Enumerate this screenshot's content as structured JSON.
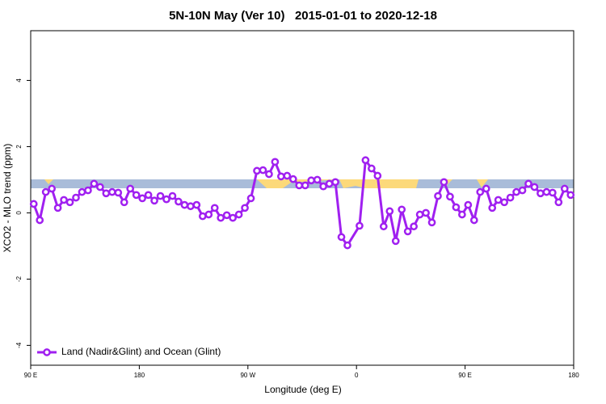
{
  "chart_data": {
    "type": "line",
    "title": "5N-10N May (Ver 10)   2015-01-01 to 2020-12-18",
    "x_label": "Longitude (deg E)",
    "y_label": "XCO2 - MLO trend (ppm)",
    "x": [
      92.5,
      97.5,
      102.5,
      107.5,
      112.5,
      117.5,
      122.5,
      127.5,
      132.5,
      137.5,
      142.5,
      147.5,
      152.5,
      157.5,
      162.5,
      167.5,
      172.5,
      177.5,
      182.5,
      187.5,
      192.5,
      197.5,
      202.5,
      207.5,
      212.5,
      217.5,
      222.5,
      227.5,
      232.5,
      237.5,
      242.5,
      247.5,
      252.5,
      257.5,
      262.5,
      267.5,
      272.5,
      277.5,
      282.5,
      287.5,
      292.5,
      297.5,
      302.5,
      307.5,
      312.5,
      317.5,
      322.5,
      327.5,
      332.5,
      337.5,
      342.5,
      347.5,
      352.5,
      362.5,
      367.5,
      372.5,
      377.5,
      382.5,
      387.5,
      392.5,
      397.5,
      402.5,
      407.5,
      412.5,
      417.5,
      422.5,
      427.5,
      432.5,
      437.5,
      442.5,
      447.5,
      452.5,
      457.5,
      462.5,
      467.5,
      472.5,
      477.5,
      482.5,
      487.5,
      492.5,
      497.5,
      502.5,
      507.5,
      512.5,
      517.5,
      522.5,
      527.5,
      532.5,
      537.5
    ],
    "series": [
      {
        "name": "Land (Nadir&Glint) and Ocean (Glint)",
        "color": "#a020f0",
        "values": [
          0.27,
          -0.22,
          0.63,
          0.73,
          0.15,
          0.39,
          0.32,
          0.46,
          0.63,
          0.68,
          0.88,
          0.78,
          0.59,
          0.63,
          0.61,
          0.32,
          0.73,
          0.54,
          0.44,
          0.54,
          0.37,
          0.51,
          0.41,
          0.51,
          0.34,
          0.24,
          0.2,
          0.24,
          -0.1,
          -0.05,
          0.15,
          -0.15,
          -0.07,
          -0.15,
          -0.05,
          0.15,
          0.44,
          1.27,
          1.29,
          1.17,
          1.54,
          1.1,
          1.12,
          1.02,
          0.83,
          0.83,
          0.98,
          1.0,
          0.8,
          0.88,
          0.93,
          -0.73,
          -0.98,
          -0.39,
          1.59,
          1.34,
          1.12,
          -0.41,
          0.05,
          -0.85,
          0.1,
          -0.56,
          -0.41,
          -0.05,
          0.0,
          -0.29,
          0.51,
          0.93,
          0.49,
          0.17,
          -0.05,
          0.24,
          -0.22,
          0.63,
          0.73,
          0.15,
          0.39,
          0.32,
          0.46,
          0.63,
          0.68,
          0.88,
          0.78,
          0.59,
          0.63,
          0.61,
          0.32,
          0.73,
          0.54
        ]
      }
    ],
    "xlim": [
      90,
      540
    ],
    "xticks": [
      {
        "value": 90,
        "label": "90 E"
      },
      180,
      {
        "value": 270,
        "label": "90 W"
      },
      {
        "value": 360,
        "label": "0"
      },
      {
        "value": 450,
        "label": "90 E"
      },
      {
        "value": 540,
        "label": "180"
      }
    ],
    "ylim": [
      -4.6,
      5.5
    ],
    "yticks": [
      -4,
      -2,
      0,
      2,
      4
    ],
    "legend": "bottom left"
  }
}
